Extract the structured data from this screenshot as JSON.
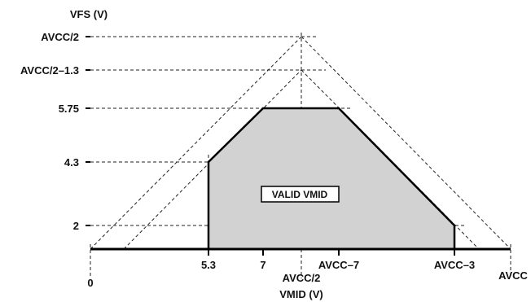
{
  "chart_data": {
    "type": "area",
    "title": "",
    "xlabel": "VMID (V)",
    "ylabel": "VFS (V)",
    "x_ticks": [
      {
        "key": "x0",
        "label": "0"
      },
      {
        "key": "x53",
        "label": "5.3"
      },
      {
        "key": "x7",
        "label": "7"
      },
      {
        "key": "xmid",
        "label": "AVCC/2"
      },
      {
        "key": "xm7",
        "label": "AVCC–7"
      },
      {
        "key": "xm3",
        "label": "AVCC–3"
      },
      {
        "key": "xavcc",
        "label": "AVCC"
      }
    ],
    "y_ticks": [
      {
        "key": "y2",
        "label": "2"
      },
      {
        "key": "y43",
        "label": "4.3"
      },
      {
        "key": "y575",
        "label": "5.75"
      },
      {
        "key": "yhalf13",
        "label": "AVCC/2–1.3"
      },
      {
        "key": "yhalf",
        "label": "AVCC/2"
      }
    ],
    "region": {
      "label": "VALID VMID",
      "vertices": [
        {
          "x": "x53",
          "y": 0
        },
        {
          "x": "x53",
          "y": "y43"
        },
        {
          "x": "x7",
          "y": "y575"
        },
        {
          "x": "xm7",
          "y": "y575"
        },
        {
          "x": "xm3",
          "y": "y2"
        },
        {
          "x": "xm3",
          "y": 0
        }
      ]
    },
    "boundary_lines": [
      {
        "from": {
          "x": "x0",
          "y": 0
        },
        "to": {
          "x": "xmid",
          "y": "yhalf"
        }
      },
      {
        "from": {
          "x": "xmid",
          "y": "yhalf"
        },
        "to": {
          "x": "xavcc",
          "y": 0
        }
      },
      {
        "from": {
          "x": "x0",
          "y": 0
        },
        "to": {
          "x": "xmid",
          "y": "yhalf13"
        }
      },
      {
        "from": {
          "x": "xmid",
          "y": "yhalf13"
        },
        "to": {
          "x": "xavcc",
          "y": 0
        }
      }
    ],
    "colors": {
      "region_fill": "#d2d2d2",
      "outline": "#000000"
    }
  }
}
